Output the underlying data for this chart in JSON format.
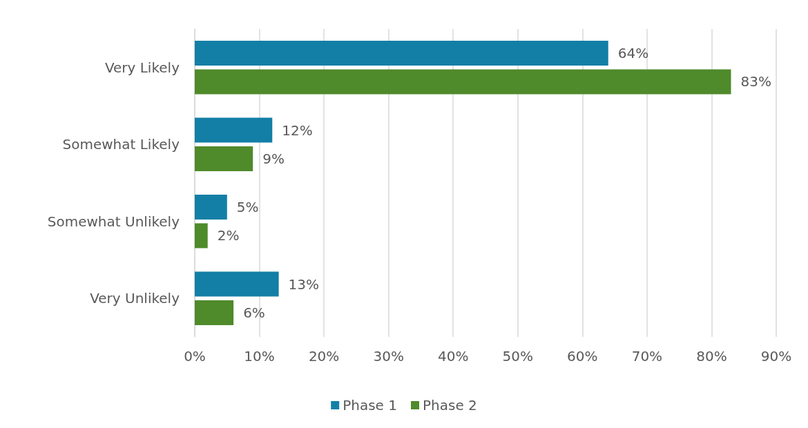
{
  "chart_data": {
    "type": "bar",
    "orientation": "horizontal",
    "categories": [
      "Very Likely",
      "Somewhat Likely",
      "Somewhat Unlikely",
      "Very Unlikely"
    ],
    "series": [
      {
        "name": "Phase 1",
        "color": "#137fa6",
        "values": [
          64,
          12,
          5,
          13
        ],
        "value_labels": [
          "64%",
          "12%",
          "5%",
          "13%"
        ]
      },
      {
        "name": "Phase 2",
        "color": "#4f8a2b",
        "values": [
          83,
          9,
          2,
          6
        ],
        "value_labels": [
          "83%",
          "9%",
          "2%",
          "6%"
        ]
      }
    ],
    "xlim": [
      0,
      90
    ],
    "xticks": [
      {
        "value": 0,
        "label": "0%"
      },
      {
        "value": 10,
        "label": "10%"
      },
      {
        "value": 20,
        "label": "20%"
      },
      {
        "value": 30,
        "label": "30%"
      },
      {
        "value": 40,
        "label": "40%"
      },
      {
        "value": 50,
        "label": "50%"
      },
      {
        "value": 60,
        "label": "60%"
      },
      {
        "value": 70,
        "label": "70%"
      },
      {
        "value": 80,
        "label": "80%"
      },
      {
        "value": 90,
        "label": "90%"
      }
    ],
    "grid": "x",
    "legend": "bottom"
  }
}
